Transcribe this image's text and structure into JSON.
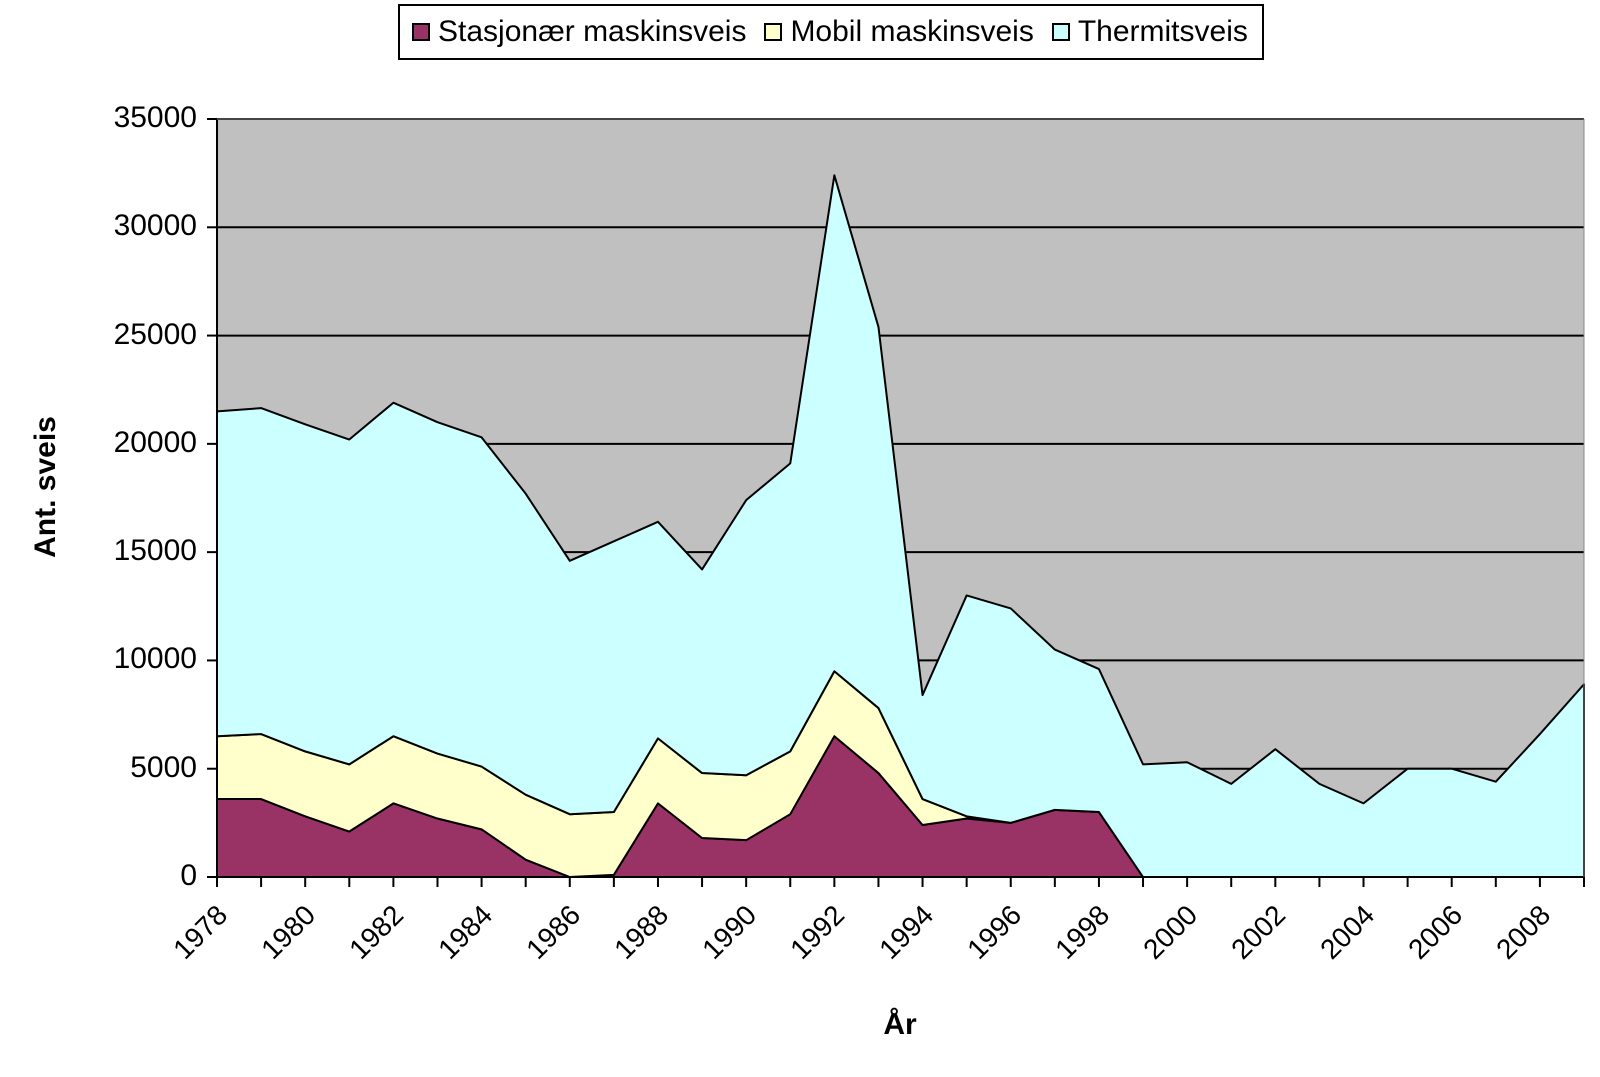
{
  "chart_data": {
    "type": "area",
    "stacked": true,
    "title": "",
    "xlabel": "År",
    "ylabel": "Ant. sveis",
    "ylim": [
      0,
      35000
    ],
    "yticks": [
      0,
      5000,
      10000,
      15000,
      20000,
      25000,
      30000,
      35000
    ],
    "xtick_labels": [
      "1978",
      "1980",
      "1982",
      "1984",
      "1986",
      "1988",
      "1990",
      "1992",
      "1994",
      "1996",
      "1998",
      "2000",
      "2002",
      "2004",
      "2006",
      "2008"
    ],
    "grid": "horizontal major gridlines",
    "legend_position": "top",
    "plot_background": "#c0c0c0",
    "x": [
      1978,
      1979,
      1980,
      1981,
      1982,
      1983,
      1984,
      1985,
      1986,
      1987,
      1988,
      1989,
      1990,
      1991,
      1992,
      1993,
      1994,
      1995,
      1996,
      1997,
      1998,
      1999,
      2000,
      2001,
      2002,
      2003,
      2004,
      2005,
      2006,
      2007,
      2008,
      2009
    ],
    "series": [
      {
        "name": "Stasjonær maskinsveis",
        "color": "#993366",
        "values": [
          3600,
          3600,
          2800,
          2100,
          3400,
          2700,
          2200,
          800,
          0,
          100,
          3400,
          1800,
          1700,
          2900,
          6500,
          4800,
          2400,
          2700,
          2500,
          3100,
          3000,
          0,
          0,
          0,
          0,
          0,
          0,
          0,
          0,
          0,
          0,
          0
        ]
      },
      {
        "name": "Mobil maskinsveis",
        "color": "#ffffcc",
        "values": [
          2900,
          3000,
          3000,
          3100,
          3100,
          3000,
          2900,
          3000,
          2900,
          2900,
          3000,
          3000,
          3000,
          2900,
          3000,
          3000,
          1200,
          100,
          0,
          0,
          0,
          0,
          0,
          0,
          0,
          0,
          0,
          0,
          0,
          0,
          0,
          0
        ]
      },
      {
        "name": "Thermitsveis",
        "color": "#ccffff",
        "values": [
          15000,
          15050,
          15100,
          15000,
          15400,
          15300,
          15200,
          13900,
          11700,
          12500,
          10000,
          9400,
          12700,
          13300,
          22900,
          17600,
          4800,
          10200,
          9900,
          7400,
          6600,
          5200,
          5300,
          4300,
          5900,
          4300,
          3400,
          5000,
          5000,
          4400,
          6600,
          8900
        ]
      }
    ],
    "totals": [
      21500,
      21650,
      20900,
      20200,
      21900,
      21000,
      20300,
      17700,
      14600,
      15500,
      16400,
      14200,
      17400,
      19100,
      32400,
      25400,
      8400,
      13000,
      12400,
      10500,
      9600,
      5200,
      5300,
      4300,
      5900,
      4300,
      3400,
      5000,
      5000,
      4400,
      6600,
      8900
    ]
  },
  "legend": {
    "items": [
      {
        "label": "Stasjonær maskinsveis",
        "color": "#993366"
      },
      {
        "label": "Mobil maskinsveis",
        "color": "#ffffcc"
      },
      {
        "label": "Thermitsveis",
        "color": "#ccffff"
      }
    ]
  },
  "axes": {
    "ylabel": "Ant. sveis",
    "xlabel": "År"
  }
}
